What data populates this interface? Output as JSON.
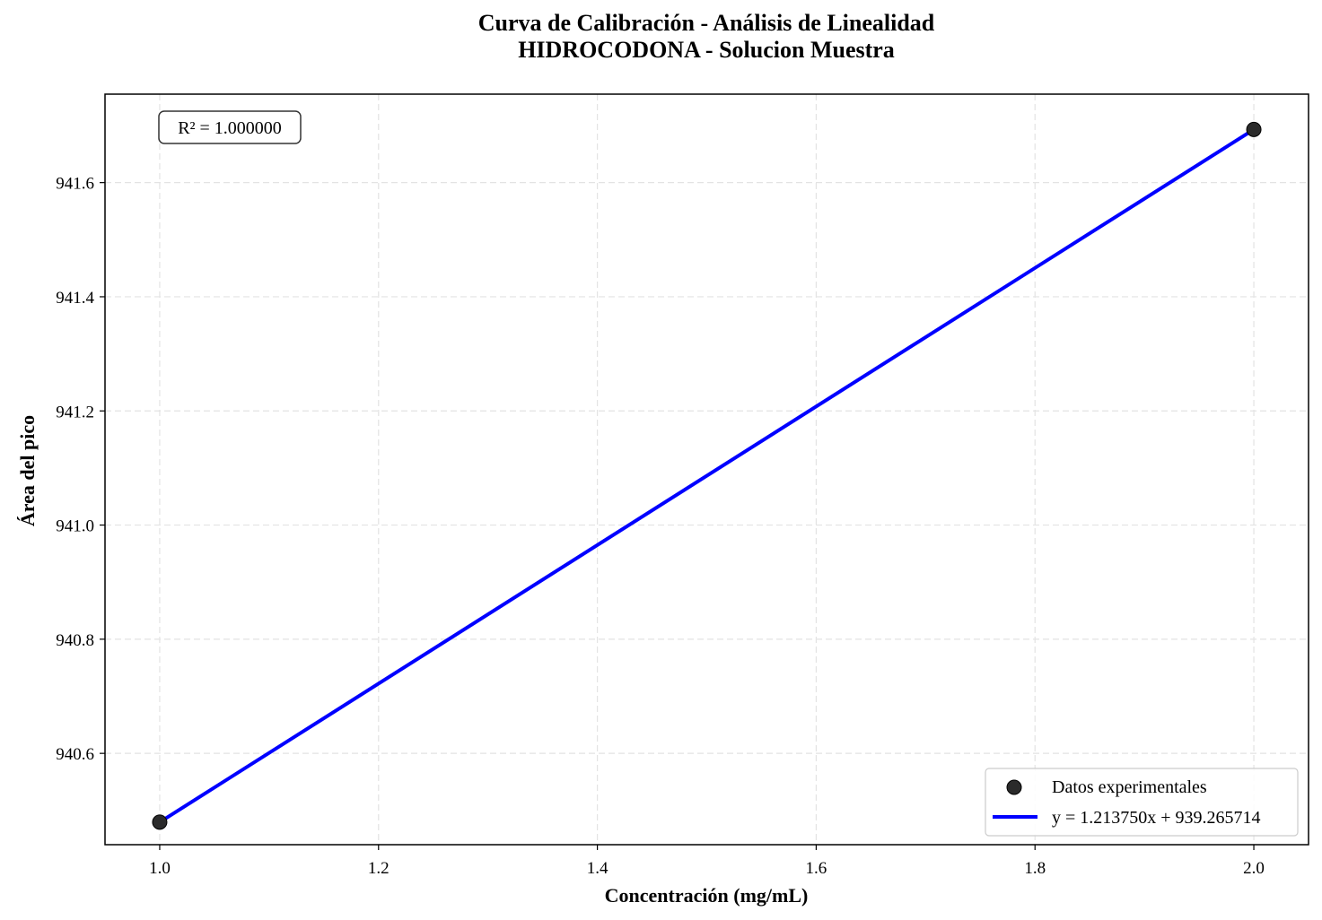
{
  "chart_data": {
    "type": "scatter",
    "title": "Curva de Calibración - Análisis de Linealidad",
    "subtitle": "HIDROCODONA - Solucion Muestra",
    "xlabel": "Concentración (mg/mL)",
    "ylabel": "Área del pico",
    "xlim": [
      0.95,
      2.05
    ],
    "ylim": [
      940.44,
      941.755
    ],
    "x_ticks": [
      1.0,
      1.2,
      1.4,
      1.6,
      1.8,
      2.0
    ],
    "x_tick_labels": [
      "1.0",
      "1.2",
      "1.4",
      "1.6",
      "1.8",
      "2.0"
    ],
    "y_ticks": [
      940.6,
      940.8,
      941.0,
      941.2,
      941.4,
      941.6
    ],
    "y_tick_labels": [
      "940.6",
      "940.8",
      "941.0",
      "941.2",
      "941.4",
      "941.6"
    ],
    "grid": true,
    "legend_position": "bottom-right",
    "series": [
      {
        "name": "Datos experimentales",
        "kind": "scatter",
        "color": "#2b2b2b",
        "x": [
          1.0,
          2.0
        ],
        "y": [
          940.479464,
          941.693214
        ]
      },
      {
        "name": "y = 1.213750x + 939.265714",
        "kind": "line",
        "color": "#0000ff",
        "x": [
          1.0,
          2.0
        ],
        "y": [
          940.479464,
          941.693214
        ]
      }
    ],
    "annotation": "R² = 1.000000"
  }
}
